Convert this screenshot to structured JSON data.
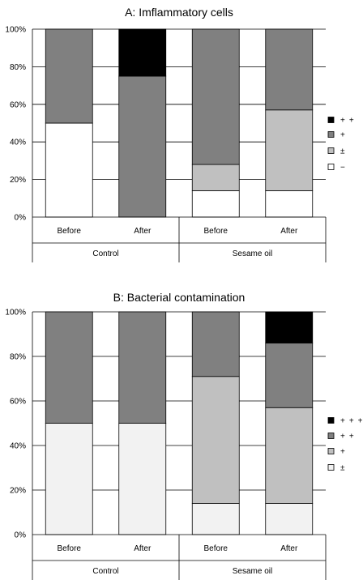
{
  "chart_data": [
    {
      "type": "bar",
      "stacked": true,
      "title": "A:  Imflammatory cells",
      "ylim": [
        0,
        100
      ],
      "yticks": [
        "0%",
        "20%",
        "40%",
        "60%",
        "80%",
        "100%"
      ],
      "categories": [
        "Before",
        "After",
        "Before",
        "After"
      ],
      "groups": [
        {
          "label": "Control",
          "span": [
            0,
            1
          ]
        },
        {
          "label": "Sesame oil",
          "span": [
            2,
            3
          ]
        }
      ],
      "series": [
        {
          "name": "−",
          "color": "#ffffff",
          "values": [
            50,
            0,
            14,
            14
          ]
        },
        {
          "name": "±",
          "color": "#c0c0c0",
          "values": [
            0,
            0,
            14,
            43
          ]
        },
        {
          "name": "+",
          "color": "#808080",
          "values": [
            50,
            75,
            72,
            43
          ]
        },
        {
          "name": "+ +",
          "color": "#000000",
          "values": [
            0,
            25,
            0,
            0
          ]
        }
      ],
      "grid": true,
      "legend": "right"
    },
    {
      "type": "bar",
      "stacked": true,
      "title": "B:  Bacterial contamination",
      "ylim": [
        0,
        100
      ],
      "yticks": [
        "0%",
        "20%",
        "40%",
        "60%",
        "80%",
        "100%"
      ],
      "categories": [
        "Before",
        "After",
        "Before",
        "After"
      ],
      "groups": [
        {
          "label": "Control",
          "span": [
            0,
            1
          ]
        },
        {
          "label": "Sesame oil",
          "span": [
            2,
            3
          ]
        }
      ],
      "series": [
        {
          "name": "±",
          "color": "#f2f2f2",
          "values": [
            50,
            50,
            14,
            14
          ]
        },
        {
          "name": "+",
          "color": "#c0c0c0",
          "values": [
            0,
            0,
            57,
            43
          ]
        },
        {
          "name": "+ +",
          "color": "#808080",
          "values": [
            50,
            50,
            29,
            29
          ]
        },
        {
          "name": "+ + +",
          "color": "#000000",
          "values": [
            0,
            0,
            0,
            14
          ]
        }
      ],
      "grid": true,
      "legend": "right"
    }
  ]
}
